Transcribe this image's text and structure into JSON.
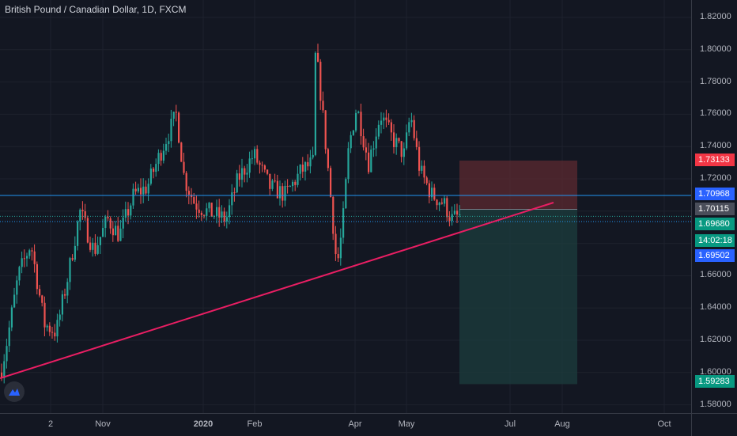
{
  "title": "British Pound / Canadian Dollar, 1D, FXCM",
  "colors": {
    "background": "#131722",
    "bull": "#26a69a",
    "bear": "#ef5350",
    "trendline": "#e91e63",
    "hline": "#2196f3",
    "stop_zone": "#5c2a30",
    "target_zone": "#1b3b3c"
  },
  "price_axis": {
    "ticks": [
      "1.82000",
      "1.80000",
      "1.78000",
      "1.76000",
      "1.74000",
      "1.72000",
      "1.70000",
      "1.68000",
      "1.66000",
      "1.64000",
      "1.62000",
      "1.60000",
      "1.58000"
    ],
    "labels": {
      "stop": "1.73133",
      "hline": "1.70968",
      "entry": "1.70115",
      "last": "1.69680",
      "countdown": "14:02:18",
      "support": "1.69502",
      "target": "1.59283"
    }
  },
  "time_axis": {
    "ticks": [
      "2",
      "Nov",
      "2020",
      "Feb",
      "Apr",
      "May",
      "Jul",
      "Aug",
      "Oct"
    ]
  },
  "logo": "tradingview-logo-icon"
}
